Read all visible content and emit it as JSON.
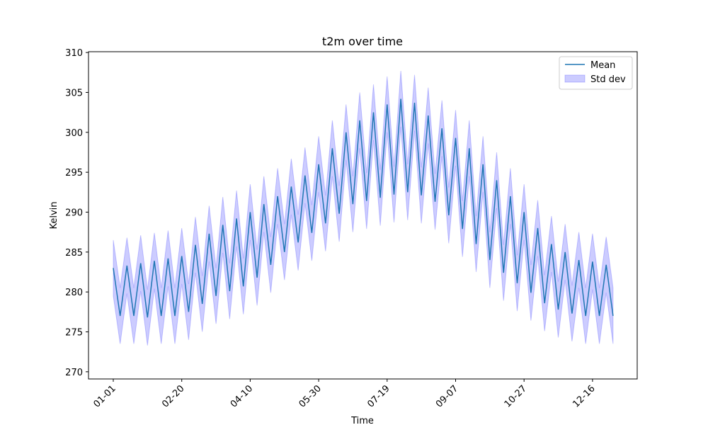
{
  "chart_data": {
    "type": "line",
    "title": "t2m over time",
    "x_label": "Time",
    "y_label": "Kelvin",
    "x": [
      "01-01",
      "01-06",
      "01-11",
      "01-16",
      "01-21",
      "01-26",
      "01-31",
      "02-05",
      "02-10",
      "02-15",
      "02-20",
      "02-25",
      "03-01",
      "03-06",
      "03-11",
      "03-16",
      "03-21",
      "03-26",
      "03-31",
      "04-05",
      "04-10",
      "04-15",
      "04-20",
      "04-25",
      "04-30",
      "05-05",
      "05-10",
      "05-15",
      "05-20",
      "05-25",
      "05-30",
      "06-04",
      "06-09",
      "06-14",
      "06-19",
      "06-24",
      "06-29",
      "07-04",
      "07-09",
      "07-14",
      "07-19",
      "07-24",
      "07-29",
      "08-03",
      "08-08",
      "08-13",
      "08-18",
      "08-23",
      "08-28",
      "09-02",
      "09-07",
      "09-12",
      "09-17",
      "09-22",
      "09-27",
      "10-02",
      "10-07",
      "10-12",
      "10-17",
      "10-22",
      "10-27",
      "11-01",
      "11-06",
      "11-11",
      "11-16",
      "11-21",
      "11-26",
      "12-01",
      "12-06",
      "12-11",
      "12-16",
      "12-21",
      "12-26",
      "12-31"
    ],
    "series": [
      {
        "name": "Mean",
        "color": "#1f77b4",
        "values": [
          283,
          277,
          283.3,
          277,
          283.6,
          276.8,
          283.9,
          277,
          284.2,
          277,
          284.5,
          277.5,
          285.9,
          278.5,
          287.3,
          279.5,
          288.4,
          280.1,
          289.2,
          280.7,
          290,
          281.8,
          291,
          283.4,
          292,
          285,
          293.2,
          286.2,
          294.6,
          287.4,
          296,
          288.6,
          298,
          289.8,
          300,
          291,
          301.5,
          291.4,
          302.5,
          291.8,
          303.5,
          292.2,
          304.2,
          292.5,
          303.7,
          292.1,
          302.1,
          291.3,
          300.5,
          289.6,
          299.3,
          287.9,
          298,
          286,
          296,
          284,
          294,
          282.4,
          292,
          281.1,
          290,
          279.9,
          288,
          278.6,
          286,
          277.8,
          285,
          277.3,
          284,
          277,
          283.8,
          277,
          283.4,
          277
        ]
      }
    ],
    "band": {
      "name": "Std dev",
      "color": "#0000ff",
      "lower": [
        279.5,
        273.5,
        279.8,
        273.5,
        280.1,
        273.3,
        280.4,
        273.5,
        280.7,
        273.5,
        281,
        274,
        282.4,
        275,
        283.8,
        276,
        284.9,
        276.6,
        285.7,
        277.2,
        286.5,
        278.3,
        287.5,
        279.9,
        288.5,
        281.5,
        289.7,
        282.7,
        291.1,
        283.9,
        292.5,
        285.1,
        294.5,
        286.3,
        296.5,
        287.5,
        298,
        287.9,
        299,
        288.3,
        300,
        288.7,
        300.7,
        289,
        300.2,
        288.6,
        298.6,
        287.8,
        297,
        286.1,
        295.8,
        284.4,
        294.5,
        282.5,
        292.5,
        280.5,
        290.5,
        278.9,
        288.5,
        277.6,
        286.5,
        276.4,
        284.5,
        275.1,
        282.5,
        274.3,
        281.5,
        273.8,
        280.5,
        273.5,
        280.3,
        273.5,
        279.9,
        273.5
      ],
      "upper": [
        286.5,
        280.5,
        286.8,
        280.5,
        287.1,
        280.3,
        287.4,
        280.5,
        287.7,
        280.5,
        288,
        281,
        289.4,
        282,
        290.8,
        283,
        291.9,
        283.6,
        292.7,
        284.2,
        293.5,
        285.3,
        294.5,
        286.9,
        295.5,
        288.5,
        296.7,
        289.7,
        298.1,
        290.9,
        299.5,
        292.1,
        301.5,
        293.3,
        303.5,
        294.5,
        305,
        294.9,
        306,
        295.3,
        307,
        295.7,
        307.7,
        296,
        307.2,
        295.6,
        305.6,
        294.8,
        304,
        293.1,
        302.8,
        291.4,
        301.5,
        289.5,
        299.5,
        287.5,
        297.5,
        285.9,
        295.5,
        284.6,
        293.5,
        283.4,
        291.5,
        282.1,
        289.5,
        281.3,
        288.5,
        280.8,
        287.5,
        280.5,
        287.3,
        280.5,
        286.9,
        280.5
      ]
    },
    "ylim": [
      269.1,
      310.1
    ],
    "yticks": [
      270,
      275,
      280,
      285,
      290,
      295,
      300,
      305,
      310
    ],
    "xticks": [
      "01-01",
      "02-20",
      "04-10",
      "05-30",
      "07-19",
      "09-07",
      "10-27",
      "12-16"
    ],
    "legend": "upper right"
  }
}
